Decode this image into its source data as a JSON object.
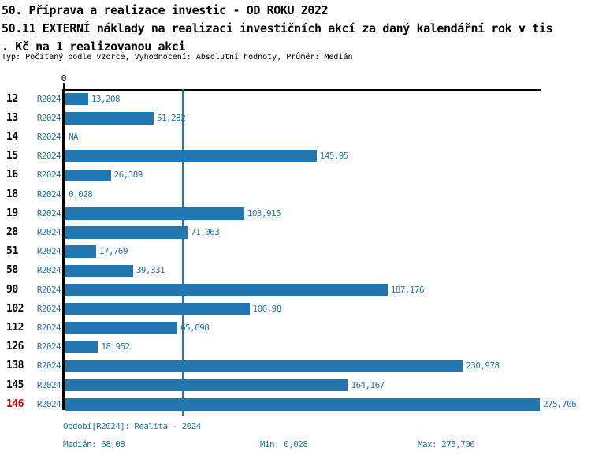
{
  "header": {
    "title_lines": [
      "50. Příprava a realizace investic - OD ROKU 2022",
      "50.11 EXTERNÍ náklady na realizaci investičních akcí za daný kalendářní rok v tis",
      ". Kč na 1 realizovanou akci"
    ],
    "subtitle": "Typ: Počítaný podle vzorce, Vyhodnocení: Absolutní hodnoty, Průměr: Medián"
  },
  "chart_data": {
    "type": "bar",
    "orientation": "horizontal",
    "title": "50.11 EXTERNÍ náklady na realizaci investičních akcí za daný kalendářní rok v tis. Kč na 1 realizovanou akci",
    "axis": {
      "tick_zero_label": "0",
      "xlim": [
        0,
        275.706
      ],
      "median_line_value": 68.08,
      "grid": "median-only"
    },
    "colors": {
      "bar": "#2277b0",
      "accent_text": "#2277b0",
      "highlight": "#e00000"
    },
    "series_name": "R2024",
    "rows": [
      {
        "id": "12",
        "period": "R2024",
        "value": 13.208,
        "label": "13,208",
        "highlight": false
      },
      {
        "id": "13",
        "period": "R2024",
        "value": 51.282,
        "label": "51,282",
        "highlight": false
      },
      {
        "id": "14",
        "period": "R2024",
        "value": null,
        "label": "NA",
        "highlight": false
      },
      {
        "id": "15",
        "period": "R2024",
        "value": 145.95,
        "label": "145,95",
        "highlight": false
      },
      {
        "id": "16",
        "period": "R2024",
        "value": 26.389,
        "label": "26,389",
        "highlight": false
      },
      {
        "id": "18",
        "period": "R2024",
        "value": 0.028,
        "label": "0,028",
        "highlight": false
      },
      {
        "id": "19",
        "period": "R2024",
        "value": 103.915,
        "label": "103,915",
        "highlight": false
      },
      {
        "id": "28",
        "period": "R2024",
        "value": 71.063,
        "label": "71,063",
        "highlight": false
      },
      {
        "id": "51",
        "period": "R2024",
        "value": 17.769,
        "label": "17,769",
        "highlight": false
      },
      {
        "id": "58",
        "period": "R2024",
        "value": 39.331,
        "label": "39,331",
        "highlight": false
      },
      {
        "id": "90",
        "period": "R2024",
        "value": 187.176,
        "label": "187,176",
        "highlight": false
      },
      {
        "id": "102",
        "period": "R2024",
        "value": 106.98,
        "label": "106,98",
        "highlight": false
      },
      {
        "id": "112",
        "period": "R2024",
        "value": 65.098,
        "label": "65,098",
        "highlight": false
      },
      {
        "id": "126",
        "period": "R2024",
        "value": 18.952,
        "label": "18,952",
        "highlight": false
      },
      {
        "id": "138",
        "period": "R2024",
        "value": 230.978,
        "label": "230,978",
        "highlight": false
      },
      {
        "id": "145",
        "period": "R2024",
        "value": 164.167,
        "label": "164,167",
        "highlight": false
      },
      {
        "id": "146",
        "period": "R2024",
        "value": 275.706,
        "label": "275,706",
        "highlight": true
      }
    ]
  },
  "footer": {
    "period_label": "Období[R2024]: Realita - 2024",
    "median_label": "Medián: 68,08",
    "min_label": "Min: 0,028",
    "max_label": "Max: 275,706"
  }
}
